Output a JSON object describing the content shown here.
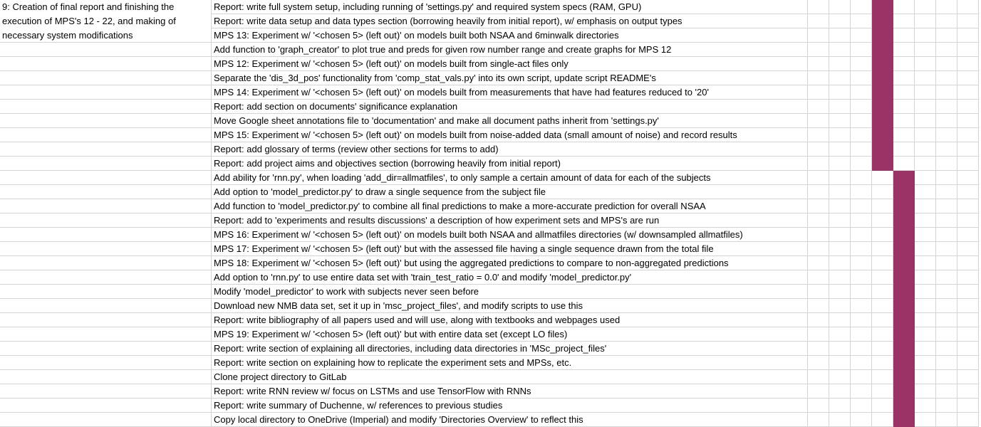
{
  "sheet": {
    "accent_color": "#993366",
    "merged_phase_label": [
      "9: Creation of final report and finishing the",
      "execution of MPS's 12 - 22, and making of",
      "necessary system modifications"
    ],
    "tasks": [
      "Report: write full system setup, including running of 'settings.py' and required system specs (RAM, GPU)",
      "Report: write data setup and data types section (borrowing heavily from initial report), w/ emphasis on output types",
      "MPS 13: Experiment w/ '<chosen 5> (left out)' on models built both NSAA and 6minwalk directories",
      "Add function to 'graph_creator' to plot true and preds for given row number range and create graphs for MPS 12",
      "MPS 12: Experiment w/ '<chosen 5> (left out)' on models built from single-act files only",
      "Separate the 'dis_3d_pos' functionality from 'comp_stat_vals.py' into its own script, update script README's",
      "MPS 14: Experiment w/ '<chosen 5> (left out)' on models built from measurements that have had features reduced to '20'",
      "Report: add section on documents' significance explanation",
      "Move Google sheet annotations file to 'documentation' and make all document paths inherit from 'settings.py'",
      "MPS 15: Experiment w/ '<chosen 5> (left out)' on models built from noise-added data (small amount of noise) and record results",
      "Report: add glossary of terms (review other sections for terms to add)",
      "Report: add project aims and objectives section (borrowing heavily from initial report)",
      "Add ability for 'rnn.py', when loading 'add_dir=allmatfiles', to only sample a certain amount of data for each of the subjects",
      "Add option to 'model_predictor.py' to draw a single sequence from the subject file",
      "Add function to 'model_predictor.py' to combine all final predictions to make a more-accurate prediction for overall NSAA",
      "Report: add to 'experiments and results discussions' a description of how experiment sets and MPS's are run",
      "MPS 16: Experiment w/ '<chosen 5> (left out)' on models built both NSAA and allmatfiles directories (w/ downsampled allmatfiles)",
      "MPS 17: Experiment w/ '<chosen 5> (left out)' but with the assessed file having a single sequence drawn from the total file",
      "MPS 18: Experiment w/ '<chosen 5> (left out)' but using the aggregated predictions to compare to non-aggregated predictions",
      "Add option to 'rnn.py' to use entire data set with 'train_test_ratio = 0.0' and modify 'model_predictor.py'",
      "Modify 'model_predictor' to work with subjects never seen before",
      "Download new NMB data set, set it up in 'msc_project_files', and modify scripts to use this",
      "Report: write bibliography of all papers used and will use, along with textbooks and webpages used",
      "MPS 19: Experiment w/ '<chosen 5> (left out)' but with entire data set (except LO files)",
      "Report: write section of explaining all directories, including data directories in 'MSc_project_files'",
      "Report: write section on explaining how to replicate the experiment sets and MPSs, etc.",
      "Clone project directory to GitLab",
      "Report: write RNN review w/ focus on LSTMs and use TensorFlow with RNNs",
      "Report: write summary of Duchenne, w/ references to previous studies",
      "Copy local directory to OneDrive (Imperial) and modify 'Directories Overview' to reflect this"
    ],
    "gantt_fill_week_index": [
      2,
      2,
      2,
      2,
      2,
      2,
      2,
      2,
      2,
      2,
      2,
      2,
      3,
      3,
      3,
      3,
      3,
      3,
      3,
      3,
      3,
      3,
      3,
      3,
      3,
      3,
      3,
      3,
      3,
      3
    ]
  }
}
